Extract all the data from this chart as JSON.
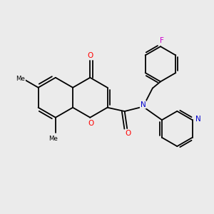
{
  "background_color": "#ebebeb",
  "bond_color": "#000000",
  "bond_lw": 1.3,
  "atom_colors": {
    "O": "#ff0000",
    "N": "#0000cc",
    "F": "#cc00cc",
    "C": "#000000"
  },
  "figsize": [
    3.0,
    3.0
  ],
  "dpi": 100,
  "xlim": [
    0,
    10
  ],
  "ylim": [
    0,
    10
  ]
}
